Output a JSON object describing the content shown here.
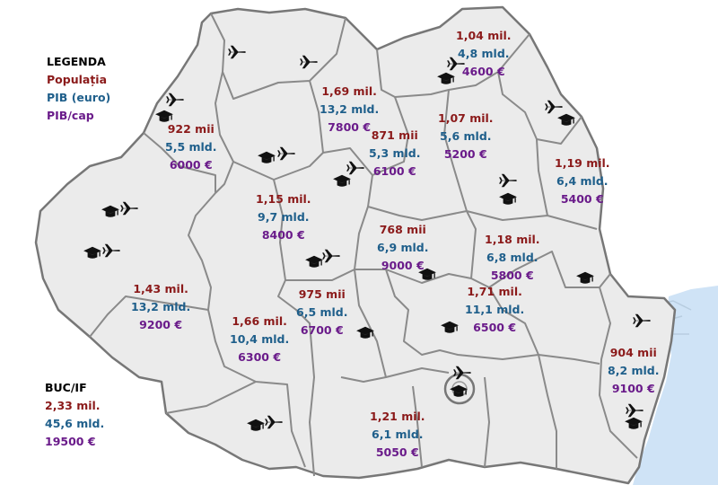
{
  "legend": {
    "title": "LEGENDA",
    "population": "Populația",
    "gdp": "PIB (euro)",
    "gdp_per_capita": "PIB/cap"
  },
  "colors": {
    "population": "#8b1a1a",
    "gdp": "#1f5f8b",
    "gdp_per_capita": "#6a1b8a",
    "land": "#ebebeb",
    "border": "#777777",
    "sea": "#cfe3f6"
  },
  "capital": {
    "title": "BUC/IF",
    "population": "2,33 mil.",
    "gdp": "45,6 mld.",
    "gdp_per_capita": "19500 €"
  },
  "regions": [
    {
      "population": "1,04 mil.",
      "gdp": "4,8 mld.",
      "gdp_per_capita": "4600 €"
    },
    {
      "population": "1,69 mil.",
      "gdp": "13,2 mld.",
      "gdp_per_capita": "7800 €"
    },
    {
      "population": "922 mii",
      "gdp": "5,5 mld.",
      "gdp_per_capita": "6000 €"
    },
    {
      "population": "871 mii",
      "gdp": "5,3 mld.",
      "gdp_per_capita": "6100 €"
    },
    {
      "population": "1,07 mil.",
      "gdp": "5,6 mld.",
      "gdp_per_capita": "5200 €"
    },
    {
      "population": "1,19 mil.",
      "gdp": "6,4 mld.",
      "gdp_per_capita": "5400 €"
    },
    {
      "population": "1,15 mil.",
      "gdp": "9,7 mld.",
      "gdp_per_capita": "8400 €"
    },
    {
      "population": "768 mii",
      "gdp": "6,9 mld.",
      "gdp_per_capita": "9000 €"
    },
    {
      "population": "1,18 mil.",
      "gdp": "6,8 mld.",
      "gdp_per_capita": "5800 €"
    },
    {
      "population": "1,43 mil.",
      "gdp": "13,2 mld.",
      "gdp_per_capita": "9200 €"
    },
    {
      "population": "975 mii",
      "gdp": "6,5 mld.",
      "gdp_per_capita": "6700 €"
    },
    {
      "population": "1,71 mil.",
      "gdp": "11,1 mld.",
      "gdp_per_capita": "6500 €"
    },
    {
      "population": "1,66 mil.",
      "gdp": "10,4 mld.",
      "gdp_per_capita": "6300 €"
    },
    {
      "population": "904 mii",
      "gdp": "8,2 mld.",
      "gdp_per_capita": "9100 €"
    },
    {
      "population": "1,21 mil.",
      "gdp": "6,1 mld.",
      "gdp_per_capita": "5050 €"
    }
  ],
  "icons": {
    "airport": "airplane-icon",
    "university": "graduation-cap-icon"
  }
}
